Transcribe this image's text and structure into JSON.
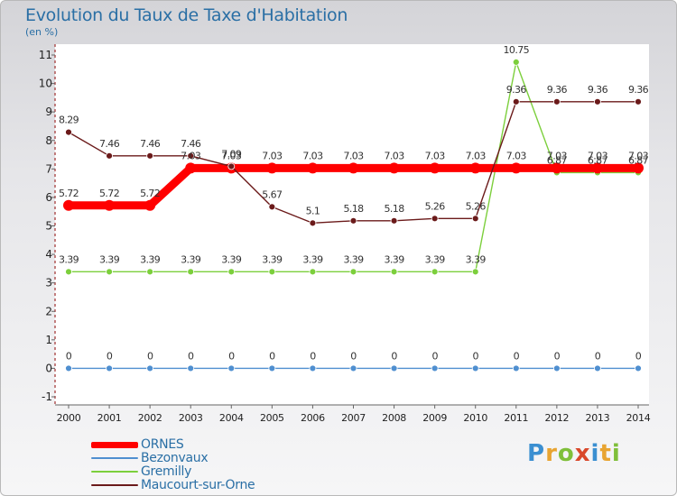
{
  "title": "Evolution du Taux de Taxe d'Habitation",
  "subtitle": "(en %)",
  "brand": {
    "chars": [
      "P",
      "r",
      "o",
      "x",
      "i",
      "t",
      "i"
    ]
  },
  "chart_data": {
    "type": "line",
    "x": [
      "2000",
      "2001",
      "2002",
      "2003",
      "2004",
      "2005",
      "2006",
      "2007",
      "2008",
      "2009",
      "2010",
      "2011",
      "2012",
      "2013",
      "2014"
    ],
    "ylim": [
      -1,
      11
    ],
    "yticks": [
      "-1",
      "0",
      "1",
      "2",
      "3",
      "4",
      "5",
      "6",
      "7",
      "8",
      "9",
      "10",
      "11"
    ],
    "grid": false,
    "legend": "bottom-left",
    "series": [
      {
        "name": "ORNES",
        "color": "#ff0000",
        "values": [
          5.72,
          5.72,
          5.72,
          7.03,
          7.03,
          7.03,
          7.03,
          7.03,
          7.03,
          7.03,
          7.03,
          7.03,
          7.03,
          7.03,
          7.03
        ],
        "labels": [
          "5.72",
          "5.72",
          "5.72",
          "7.03",
          "7.03",
          "7.03",
          "7.03",
          "7.03",
          "7.03",
          "7.03",
          "7.03",
          "7.03",
          "7.03",
          "7.03",
          "7.03"
        ]
      },
      {
        "name": "Bezonvaux",
        "color": "#4f8fd0",
        "values": [
          0,
          0,
          0,
          0,
          0,
          0,
          0,
          0,
          0,
          0,
          0,
          0,
          0,
          0,
          0
        ],
        "labels": [
          "0",
          "0",
          "0",
          "0",
          "0",
          "0",
          "0",
          "0",
          "0",
          "0",
          "0",
          "0",
          "0",
          "0",
          "0"
        ]
      },
      {
        "name": "Gremilly",
        "color": "#7ccf3c",
        "values": [
          3.39,
          3.39,
          3.39,
          3.39,
          3.39,
          3.39,
          3.39,
          3.39,
          3.39,
          3.39,
          3.39,
          10.75,
          6.87,
          6.87,
          6.87
        ],
        "labels": [
          "3.39",
          "3.39",
          "3.39",
          "3.39",
          "3.39",
          "3.39",
          "3.39",
          "3.39",
          "3.39",
          "3.39",
          "3.39",
          "10.75",
          "6.87",
          "6.87",
          "6.87"
        ]
      },
      {
        "name": "Maucourt-sur-Orne",
        "color": "#6b1a1a",
        "values": [
          8.29,
          7.46,
          7.46,
          7.46,
          7.09,
          5.67,
          5.1,
          5.18,
          5.18,
          5.26,
          5.26,
          9.36,
          9.36,
          9.36,
          9.36
        ],
        "labels": [
          "8.29",
          "7.46",
          "7.46",
          "7.46",
          "7.09",
          "5.67",
          "5.1",
          "5.18",
          "5.18",
          "5.26",
          "5.26",
          "9.36",
          "9.36",
          "9.36",
          "9.36"
        ]
      }
    ]
  }
}
